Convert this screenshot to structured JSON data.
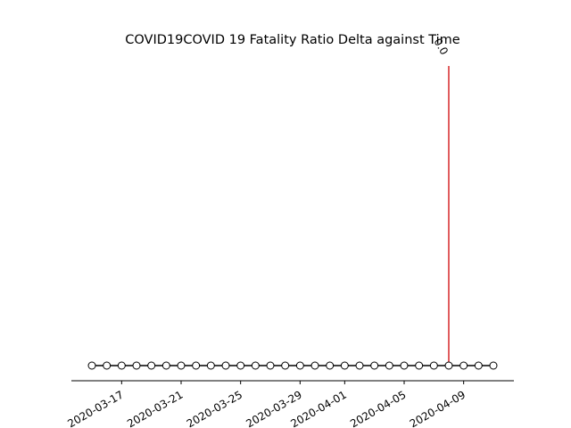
{
  "chart_data": {
    "type": "line",
    "title": "COVID19COVID 19 Fatality Ratio Delta against Time",
    "xlabel": "",
    "ylabel": "",
    "x": [
      "2020-03-15",
      "2020-03-16",
      "2020-03-17",
      "2020-03-18",
      "2020-03-19",
      "2020-03-20",
      "2020-03-21",
      "2020-03-22",
      "2020-03-23",
      "2020-03-24",
      "2020-03-25",
      "2020-03-26",
      "2020-03-27",
      "2020-03-28",
      "2020-03-29",
      "2020-03-30",
      "2020-03-31",
      "2020-04-01",
      "2020-04-02",
      "2020-04-03",
      "2020-04-04",
      "2020-04-05",
      "2020-04-06",
      "2020-04-07",
      "2020-04-08",
      "2020-04-09",
      "2020-04-10",
      "2020-04-11"
    ],
    "values": [
      0,
      0,
      0,
      0,
      0,
      0,
      0,
      0,
      0,
      0,
      0,
      0,
      0,
      0,
      0,
      0,
      0,
      0,
      0,
      0,
      0,
      0,
      0,
      0,
      0,
      0,
      0,
      0
    ],
    "highlight": {
      "x": "2020-04-08",
      "value": 0.0,
      "label": "0.0",
      "color": "#d62728"
    },
    "xticks": [
      "2020-03-17",
      "2020-03-21",
      "2020-03-25",
      "2020-03-29",
      "2020-04-01",
      "2020-04-05",
      "2020-04-09"
    ],
    "line_color": "#000000",
    "marker_fill": "#ffffff",
    "grid": false,
    "legend": "none"
  }
}
